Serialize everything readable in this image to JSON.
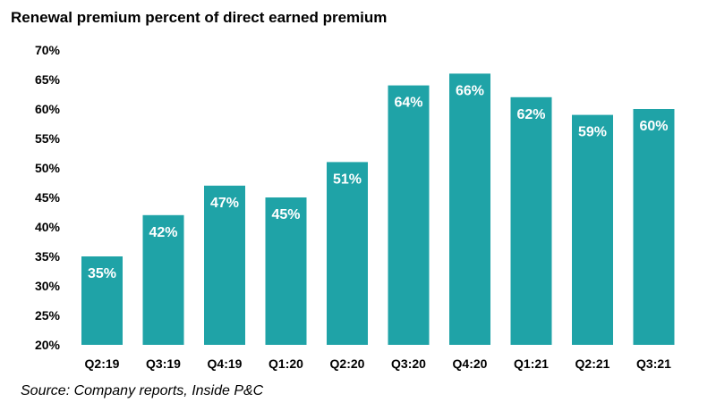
{
  "chart_data": {
    "type": "bar",
    "title": "Renewal premium percent of direct earned premium",
    "source": "Source: Company reports, Inside P&C",
    "categories": [
      "Q2:19",
      "Q3:19",
      "Q4:19",
      "Q1:20",
      "Q2:20",
      "Q3:20",
      "Q4:20",
      "Q1:21",
      "Q2:21",
      "Q3:21"
    ],
    "values": [
      35,
      42,
      47,
      45,
      51,
      64,
      66,
      62,
      59,
      60
    ],
    "data_labels": [
      "35%",
      "42%",
      "47%",
      "45%",
      "51%",
      "64%",
      "66%",
      "62%",
      "59%",
      "60%"
    ],
    "y_ticks": [
      20,
      25,
      30,
      35,
      40,
      45,
      50,
      55,
      60,
      65,
      70
    ],
    "y_tick_labels": [
      "20%",
      "25%",
      "30%",
      "35%",
      "40%",
      "45%",
      "50%",
      "55%",
      "60%",
      "65%",
      "70%"
    ],
    "ylim": [
      20,
      70
    ],
    "xlabel": "",
    "ylabel": "",
    "grid": false,
    "legend": "none",
    "bar_color": "#1fa3a7"
  }
}
